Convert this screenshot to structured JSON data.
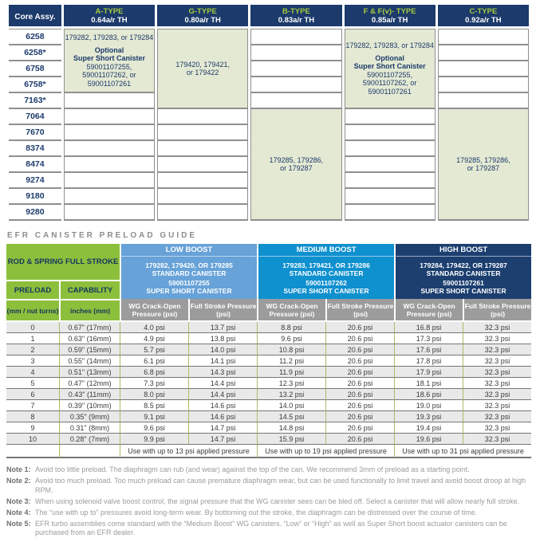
{
  "colors": {
    "navy_header": "#1c3a6b",
    "type_label_green": "#a6ca3e",
    "sage_cell": "#e4e9d3",
    "lime_green_header": "#8cbf3c",
    "low_boost_blue": "#67a2d8",
    "medium_boost_blue": "#0f90cf",
    "high_boost_navy": "#1c3f70",
    "subheader_gray": "#9c9c9c",
    "row_alt_gray": "#e9e9e9",
    "border_gray": "#8f8f8f",
    "olive_border": "#a9bc68"
  },
  "core_table": {
    "corner_header": "Core Assy.",
    "columns": [
      {
        "type": "A-TYPE",
        "ar": "0.64a/r TH"
      },
      {
        "type": "G-TYPE",
        "ar": "0.80a/r TH"
      },
      {
        "type": "B-TYPE",
        "ar": "0.83a/r TH"
      },
      {
        "type": "F & F(v)- TYPE",
        "ar": "0.85a/r TH"
      },
      {
        "type": "C-TYPE",
        "ar": "0.92a/r TH"
      }
    ],
    "rows": [
      "6258",
      "6258*",
      "6758",
      "6758*",
      "7163*",
      "7064",
      "7670",
      "8374",
      "8474",
      "9274",
      "9180",
      "9280"
    ],
    "merged_cells": {
      "a_type": {
        "parts": "179282, 179283, or 179284",
        "optional": "Optional",
        "canister": "Super Short Canister",
        "pn1": "59001107255,",
        "pn2": "59001107262, or",
        "pn3": "59001107261"
      },
      "g_type": {
        "line1": "179420, 179421,",
        "line2": "or 179422"
      },
      "b_type": {
        "line1": "179285, 179286,",
        "line2": "or 179287"
      },
      "f_type": {
        "parts": "179282, 179283, or 179284",
        "optional": "Optional",
        "canister": "Super Short Canister",
        "pn1": "59001107255,",
        "pn2": "59001107262, or",
        "pn3": "59001107261"
      },
      "c_type": {
        "line1": "179285, 179286,",
        "line2": "or 179287"
      }
    }
  },
  "preload_guide": {
    "title": "EFR CANISTER PRELOAD GUIDE",
    "left": {
      "rod_spring": "ROD & SPRING FULL STROKE",
      "preload": "PRELOAD",
      "capability": "CAPABILITY",
      "preload_unit": "(mm / nut turns)",
      "capability_unit": "inches (mm)"
    },
    "subheaders": {
      "wg": "WG Crack-Open Pressure (psi)",
      "fs": "Full Stroke Pressure (psi)"
    },
    "boost_sections": [
      {
        "name": "LOW BOOST",
        "standard_pns": "179282, 179420, OR 179285",
        "standard_label": "STANDARD CANISTER",
        "short_pn": "59001107255",
        "short_label": "SUPER SHORT CANISTER",
        "footer": "Use with up to 13 psi applied pressure"
      },
      {
        "name": "MEDIUM BOOST",
        "standard_pns": "179283, 179421, OR 179286",
        "standard_label": "STANDARD CANISTER",
        "short_pn": "59001107262",
        "short_label": "SUPER SHORT CANISTER",
        "footer": "Use with up to 19 psi applied pressure"
      },
      {
        "name": "HIGH BOOST",
        "standard_pns": "179284, 179422, OR 179287",
        "standard_label": "STANDARD CANISTER",
        "short_pn": "59001107261",
        "short_label": "SUPER SHORT CANISTER",
        "footer": "Use with up to 31 psi applied pressure"
      }
    ],
    "rows": [
      {
        "preload": "0",
        "capability": "0.67\" (17mm)",
        "low_wg": "4.0 psi",
        "low_fs": "13.7 psi",
        "med_wg": "8.8 psi",
        "med_fs": "20.6 psi",
        "high_wg": "16.8 psi",
        "high_fs": "32.3 psi"
      },
      {
        "preload": "1",
        "capability": "0.63\" (16mm)",
        "low_wg": "4.9 psi",
        "low_fs": "13.8 psi",
        "med_wg": "9.6 psi",
        "med_fs": "20.6 psi",
        "high_wg": "17.3 psi",
        "high_fs": "32.3 psi"
      },
      {
        "preload": "2",
        "capability": "0.59\" (15mm)",
        "low_wg": "5.7 psi",
        "low_fs": "14.0 psi",
        "med_wg": "10.8 psi",
        "med_fs": "20.6 psi",
        "high_wg": "17.6 psi",
        "high_fs": "32.3 psi"
      },
      {
        "preload": "3",
        "capability": "0.55\" (14mm)",
        "low_wg": "6.1 psi",
        "low_fs": "14.1 psi",
        "med_wg": "11.2 psi",
        "med_fs": "20.6 psi",
        "high_wg": "17.8 psi",
        "high_fs": "32.3 psi"
      },
      {
        "preload": "4",
        "capability": "0.51\" (13mm)",
        "low_wg": "6.8 psi",
        "low_fs": "14.3 psi",
        "med_wg": "11.9 psi",
        "med_fs": "20.6 psi",
        "high_wg": "17.9 psi",
        "high_fs": "32.3 psi"
      },
      {
        "preload": "5",
        "capability": "0.47\" (12mm)",
        "low_wg": "7.3 psi",
        "low_fs": "14.4 psi",
        "med_wg": "12.3 psi",
        "med_fs": "20.6 psi",
        "high_wg": "18.1 psi",
        "high_fs": "32.3 psi"
      },
      {
        "preload": "6",
        "capability": "0.43\" (11mm)",
        "low_wg": "8.0 psi",
        "low_fs": "14.4 psi",
        "med_wg": "13.2 psi",
        "med_fs": "20.6 psi",
        "high_wg": "18.6 psi",
        "high_fs": "32.3 psi"
      },
      {
        "preload": "7",
        "capability": "0.39\" (10mm)",
        "low_wg": "8.5 psi",
        "low_fs": "14.6 psi",
        "med_wg": "14.0 psi",
        "med_fs": "20.6 psi",
        "high_wg": "19.0 psi",
        "high_fs": "32.3 psi"
      },
      {
        "preload": "8",
        "capability": "0.35\" (9mm)",
        "low_wg": "9.1 psi",
        "low_fs": "14.6 psi",
        "med_wg": "14.5 psi",
        "med_fs": "20.6 psi",
        "high_wg": "19.3 psi",
        "high_fs": "32.3 psi"
      },
      {
        "preload": "9",
        "capability": "0.31\" (8mm)",
        "low_wg": "9.6 psi",
        "low_fs": "14.7 psi",
        "med_wg": "14.8 psi",
        "med_fs": "20.6 psi",
        "high_wg": "19.4 psi",
        "high_fs": "32.3 psi"
      },
      {
        "preload": "10",
        "capability": "0.28\" (7mm)",
        "low_wg": "9.9 psi",
        "low_fs": "14.7 psi",
        "med_wg": "15.9 psi",
        "med_fs": "20.6 psi",
        "high_wg": "19.6 psi",
        "high_fs": "32.3 psi"
      }
    ]
  },
  "notes": [
    {
      "label": "Note 1:",
      "text": "Avoid too little preload. The diaphragm can rub (and wear) against the top of the can. We recommend 3mm of preload as a starting point."
    },
    {
      "label": "Note 2:",
      "text": "Avoid too much preload. Too much preload can cause premature diaphragm wear, but can be used functionally to limit travel and avoid boost droop at high RPM."
    },
    {
      "label": "Note 3:",
      "text": "When using solenoid valve boost control, the signal pressure that the WG canister sees can be bled off. Select a canister that will allow nearly full stroke."
    },
    {
      "label": "Note 4:",
      "text": "The “use with up to” pressures avoid long-term wear. By bottoming out the stroke, the diaphragm can be distressed over the course of time."
    },
    {
      "label": "Note 5:",
      "text": "EFR turbo assemblies come standard with the “Medium Boost” WG canisters. “Low” or “High” as well as Super Short boost actuator canisters can be purchased from an EFR dealer."
    }
  ]
}
